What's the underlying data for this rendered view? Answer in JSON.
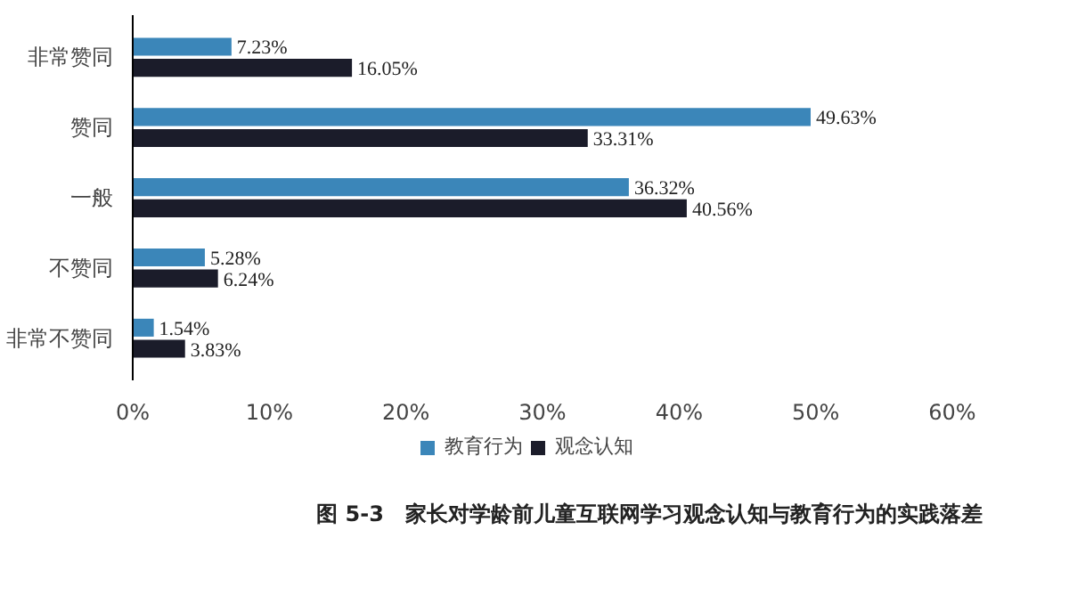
{
  "chart_data": {
    "type": "bar",
    "orientation": "horizontal",
    "title": "图 5-3　家长对学龄前儿童互联网学习观念认知与教育行为的实践落差",
    "categories": [
      "非常赞同",
      "赞同",
      "一般",
      "不赞同",
      "非常不赞同"
    ],
    "series": [
      {
        "name": "教育行为",
        "color": "#3b86b9",
        "values": [
          7.23,
          49.63,
          36.32,
          5.28,
          1.54
        ],
        "value_labels": [
          "7.23%",
          "49.63%",
          "36.32%",
          "5.28%",
          "1.54%"
        ]
      },
      {
        "name": "观念认知",
        "color": "#1b1c2a",
        "values": [
          16.05,
          33.31,
          40.56,
          6.24,
          3.83
        ],
        "value_labels": [
          "16.05%",
          "33.31%",
          "40.56%",
          "6.24%",
          "3.83%"
        ]
      }
    ],
    "xlim": [
      0,
      60
    ],
    "xticks": [
      {
        "value": 0,
        "label": "0%"
      },
      {
        "value": 10,
        "label": "10%"
      },
      {
        "value": 20,
        "label": "20%"
      },
      {
        "value": 30,
        "label": "30%"
      },
      {
        "value": 40,
        "label": "40%"
      },
      {
        "value": 50,
        "label": "50%"
      },
      {
        "value": 60,
        "label": "60%"
      }
    ],
    "grid": false,
    "legend": "bottom"
  }
}
